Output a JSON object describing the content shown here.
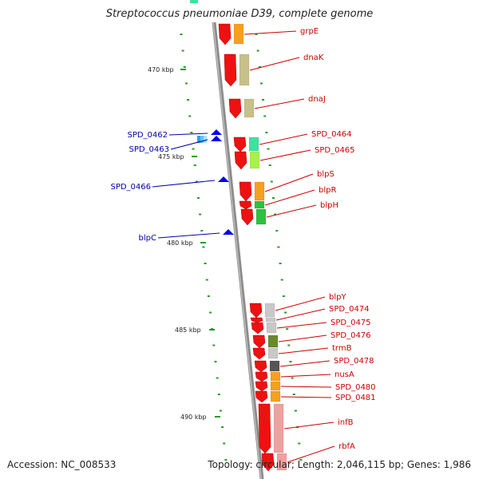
{
  "title": "Streptococcus pneumoniae D39, complete genome",
  "footer": {
    "accession": "Accession: NC_008533",
    "topology": "Topology: circular; Length: 2,046,115 bp; Genes: 1,986"
  },
  "kbp_markers": [
    "470 kbp",
    "475 kbp",
    "480 kbp",
    "485 kbp",
    "490 kbp"
  ],
  "colors": {
    "backbone": "#8c8c8c",
    "gene_forward": "#ee1111",
    "gene_reverse": "#0000ee",
    "tick": "#2a9a2a",
    "label_forward": "#cc0000",
    "label_reverse": "#0000aa"
  },
  "reverse_genes": [
    {
      "label": "SPD_0462"
    },
    {
      "label": "SPD_0463"
    },
    {
      "label": "SPD_0466"
    },
    {
      "label": "blpC"
    }
  ],
  "forward_genes": [
    {
      "label": "grpE",
      "category_color": "#f5a020"
    },
    {
      "label": "dnaK",
      "category_color": "#c8c08a"
    },
    {
      "label": "dnaJ",
      "category_color": "#c8c08a"
    },
    {
      "label": "SPD_0464",
      "category_color": "#40e0a0"
    },
    {
      "label": "SPD_0465",
      "category_color": "#a8f050"
    },
    {
      "label": "blpS",
      "category_color": "#f5a020"
    },
    {
      "label": "blpR",
      "category_color": "#30c040"
    },
    {
      "label": "blpH",
      "category_color": "#30c040"
    },
    {
      "label": "blpY",
      "category_color": "#c8c8c8"
    },
    {
      "label": "SPD_0474",
      "category_color": "#c8c8c8"
    },
    {
      "label": "SPD_0475",
      "category_color": "#c8c8c8"
    },
    {
      "label": "SPD_0476",
      "category_color": "#6a8a2a"
    },
    {
      "label": "trmB",
      "category_color": "#c8c8c8"
    },
    {
      "label": "SPD_0478",
      "category_color": "#555555"
    },
    {
      "label": "nusA",
      "category_color": "#f5a020"
    },
    {
      "label": "SPD_0480",
      "category_color": "#f5a020"
    },
    {
      "label": "SPD_0481",
      "category_color": "#f5a020"
    },
    {
      "label": "infB",
      "category_color": "#f0a0a0"
    },
    {
      "label": "rbfA",
      "category_color": "#f0a0a0"
    }
  ]
}
